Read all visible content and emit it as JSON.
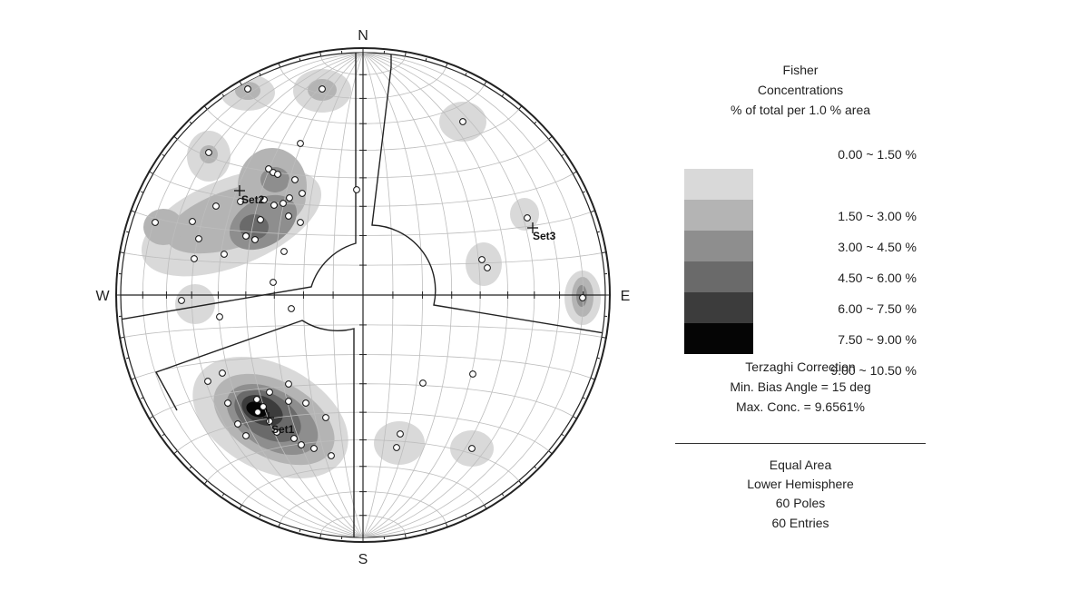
{
  "directions": {
    "n": "N",
    "s": "S",
    "e": "E",
    "w": "W"
  },
  "legend": {
    "title": [
      "Fisher",
      "Concentrations",
      "% of total per 1.0 % area"
    ],
    "ranges": [
      {
        "label": "0.00 ~  1.50 %",
        "color": "#ffffff"
      },
      {
        "label": "1.50 ~  3.00 %",
        "color": "#d9d9d9"
      },
      {
        "label": "3.00 ~  4.50 %",
        "color": "#b4b4b4"
      },
      {
        "label": "4.50 ~  6.00 %",
        "color": "#8e8e8e"
      },
      {
        "label": "6.00 ~  7.50 %",
        "color": "#6a6a6a"
      },
      {
        "label": "7.50 ~  9.00 %",
        "color": "#3c3c3c"
      },
      {
        "label": "9.00 ~ 10.50 %",
        "color": "#050505"
      }
    ],
    "correction": [
      "Terzaghi Correction",
      "Min. Bias Angle = 15 deg",
      "Max. Conc. = 9.6561%"
    ],
    "projection": [
      "Equal Area",
      "Lower Hemisphere",
      "60 Poles",
      "60 Entries"
    ]
  },
  "sets": [
    {
      "name": "Set1"
    },
    {
      "name": "Set2"
    },
    {
      "name": "Set3"
    }
  ]
}
